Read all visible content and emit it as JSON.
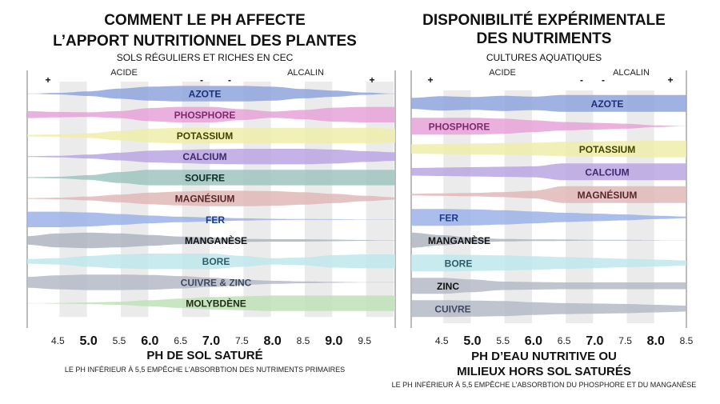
{
  "chart_data": [
    {
      "type": "area",
      "title_lines": [
        "COMMENT LE PH AFFECTE",
        "L’APPORT NUTRITIONNEL DES PLANTES"
      ],
      "subtitle": "SOLS RÉGULIERS ET RICHES EN CEC",
      "regime_left": "ACIDE",
      "regime_right": "ALCALIN",
      "signs": [
        "+",
        "-",
        "-",
        "+"
      ],
      "xlabel": "PH DE SOL SATURÉ",
      "footnote": "LE PH INFÉRIEUR À 5,5 EMPÊCHE L'ABSORBTION DES NUTRIMENTS PRIMAIRES",
      "xlim": [
        4.0,
        10.0
      ],
      "ticks": [
        {
          "value": 4.5,
          "label": "4.5",
          "major": false
        },
        {
          "value": 5.0,
          "label": "5.0",
          "major": true
        },
        {
          "value": 5.5,
          "label": "5.5",
          "major": false
        },
        {
          "value": 6.0,
          "label": "6.0",
          "major": true
        },
        {
          "value": 6.5,
          "label": "6.5",
          "major": false
        },
        {
          "value": 7.0,
          "label": "7.0",
          "major": true
        },
        {
          "value": 7.5,
          "label": "7.5",
          "major": false
        },
        {
          "value": 8.0,
          "label": "8.0",
          "major": true
        },
        {
          "value": 8.5,
          "label": "8.5",
          "major": false
        },
        {
          "value": 9.0,
          "label": "9.0",
          "major": true
        },
        {
          "value": 9.5,
          "label": "9.5",
          "major": false
        }
      ],
      "x": [
        4.0,
        4.5,
        5.0,
        5.5,
        6.0,
        6.5,
        7.0,
        7.5,
        8.0,
        8.5,
        9.0,
        9.5,
        10.0
      ],
      "series": [
        {
          "name": "AZOTE",
          "color": "#8fa4dc",
          "label_color": "#1e2f78",
          "availability": [
            0.0,
            0.1,
            0.3,
            0.65,
            0.9,
            1.0,
            1.0,
            1.0,
            0.9,
            0.6,
            0.4,
            0.15,
            0.0
          ]
        },
        {
          "name": "PHOSPHORE",
          "color": "#e6a3d8",
          "label_color": "#7e2a6e",
          "availability": [
            0.45,
            0.35,
            0.3,
            0.45,
            0.85,
            1.0,
            1.0,
            0.7,
            0.4,
            0.6,
            0.9,
            1.0,
            1.0
          ]
        },
        {
          "name": "POTASSIUM",
          "color": "#eeeeaa",
          "label_color": "#444400",
          "availability": [
            0.1,
            0.15,
            0.3,
            0.6,
            0.9,
            1.0,
            1.0,
            1.0,
            1.0,
            1.0,
            1.0,
            1.0,
            0.9
          ]
        },
        {
          "name": "CALCIUM",
          "color": "#b8a6e3",
          "label_color": "#40286e",
          "availability": [
            0.05,
            0.1,
            0.25,
            0.5,
            0.75,
            0.85,
            0.95,
            1.0,
            1.0,
            1.0,
            0.9,
            0.7,
            0.55
          ]
        },
        {
          "name": "SOUFRE",
          "color": "#9fc4be",
          "label_color": "#0e2e2a",
          "availability": [
            0.05,
            0.1,
            0.3,
            0.7,
            1.0,
            1.0,
            1.0,
            1.0,
            1.0,
            1.0,
            1.0,
            1.0,
            1.0
          ]
        },
        {
          "name": "MAGNÉSIUM",
          "color": "#e0b8b8",
          "label_color": "#5a2626",
          "availability": [
            0.05,
            0.1,
            0.25,
            0.5,
            0.75,
            0.9,
            1.0,
            1.0,
            0.95,
            0.8,
            0.6,
            0.35,
            0.15
          ]
        },
        {
          "name": "FER",
          "color": "#9cb2e8",
          "label_color": "#1e3a8a",
          "availability": [
            1.0,
            1.0,
            0.9,
            0.7,
            0.5,
            0.35,
            0.25,
            0.15,
            0.08,
            0.05,
            0.04,
            0.02,
            0.0
          ]
        },
        {
          "name": "MANGANÈSE",
          "color": "#aeb4c0",
          "label_color": "#111111",
          "availability": [
            0.55,
            0.9,
            1.0,
            0.9,
            0.7,
            0.5,
            0.35,
            0.2,
            0.15,
            0.15,
            0.1,
            0.05,
            0.0
          ]
        },
        {
          "name": "BORE",
          "color": "#bde8ec",
          "label_color": "#2b5d6b",
          "availability": [
            0.3,
            0.4,
            0.7,
            0.9,
            1.0,
            1.0,
            1.0,
            0.7,
            0.4,
            0.5,
            0.8,
            0.9,
            0.9
          ]
        },
        {
          "name": "CUIVRE & ZINC",
          "color": "#b4bac6",
          "label_color": "#3e4a62",
          "availability": [
            0.7,
            0.9,
            1.0,
            1.0,
            0.95,
            0.8,
            0.6,
            0.35,
            0.2,
            0.12,
            0.06,
            0.02,
            0.0
          ]
        },
        {
          "name": "MOLYBDÈNE",
          "color": "#bfe2b8",
          "label_color": "#1e2e12",
          "availability": [
            0.0,
            0.05,
            0.1,
            0.2,
            0.4,
            0.6,
            0.8,
            0.9,
            1.0,
            1.0,
            1.0,
            1.0,
            1.0
          ]
        }
      ]
    },
    {
      "type": "area",
      "title_lines": [
        "DISPONIBILITÉ EXPÉRIMENTALE",
        "DES NUTRIMENTS"
      ],
      "subtitle": "CULTURES AQUATIQUES",
      "regime_left": "ACIDE",
      "regime_right": "ALCALIN",
      "signs": [
        "+",
        "-",
        "-",
        "+"
      ],
      "xlabel_lines": [
        "PH D’EAU NUTRITIVE OU",
        "MILIEUX HORS SOL SATURÉS"
      ],
      "footnote": "LE PH INFÉRIEUR À 5,5 EMPÊCHE L'ABSORBTION DU PHOSPHORE ET DU MANGANÈSE",
      "xlim": [
        4.0,
        8.5
      ],
      "ticks": [
        {
          "value": 4.5,
          "label": "4.5",
          "major": false
        },
        {
          "value": 5.0,
          "label": "5.0",
          "major": true
        },
        {
          "value": 5.5,
          "label": "5.5",
          "major": false
        },
        {
          "value": 6.0,
          "label": "6.0",
          "major": true
        },
        {
          "value": 6.5,
          "label": "6.5",
          "major": false
        },
        {
          "value": 7.0,
          "label": "7.0",
          "major": true
        },
        {
          "value": 7.5,
          "label": "7.5",
          "major": false
        },
        {
          "value": 8.0,
          "label": "8.0",
          "major": true
        },
        {
          "value": 8.5,
          "label": "8.5",
          "major": false
        }
      ],
      "x": [
        4.0,
        4.5,
        5.0,
        5.5,
        6.0,
        6.5,
        7.0,
        7.5,
        8.0,
        8.5
      ],
      "series": [
        {
          "name": "AZOTE",
          "color": "#8fa4dc",
          "label_color": "#1e2f78",
          "availability": [
            0.65,
            0.85,
            0.75,
            0.9,
            0.8,
            1.0,
            1.0,
            1.0,
            1.0,
            1.0
          ]
        },
        {
          "name": "PHOSPHORE",
          "color": "#e6a3d8",
          "label_color": "#7e2a6e",
          "availability": [
            1.0,
            1.0,
            1.0,
            0.9,
            0.7,
            0.5,
            0.4,
            0.3,
            0.1,
            0.0
          ]
        },
        {
          "name": "POTASSIUM",
          "color": "#eeeeaa",
          "label_color": "#444400",
          "availability": [
            0.55,
            0.6,
            0.65,
            0.7,
            0.75,
            0.85,
            0.9,
            0.95,
            1.0,
            1.0
          ]
        },
        {
          "name": "CALCIUM",
          "color": "#b8a6e3",
          "label_color": "#40286e",
          "availability": [
            0.45,
            0.5,
            0.55,
            0.6,
            0.65,
            1.0,
            1.0,
            1.0,
            1.0,
            1.0
          ]
        },
        {
          "name": "MAGNÉSIUM",
          "color": "#e0b8b8",
          "label_color": "#5a2626",
          "availability": [
            0.1,
            0.15,
            0.2,
            0.3,
            0.45,
            1.0,
            1.0,
            1.0,
            1.0,
            1.0
          ]
        },
        {
          "name": "FER",
          "color": "#9cb2e8",
          "label_color": "#1e3a8a",
          "availability": [
            1.0,
            1.0,
            0.95,
            0.85,
            0.7,
            0.55,
            0.45,
            0.35,
            0.2,
            0.1
          ]
        },
        {
          "name": "MANGANÈSE",
          "color": "#aeb4c0",
          "label_color": "#111111",
          "availability": [
            0.9,
            0.6,
            0.3,
            0.15,
            0.1,
            0.08,
            0.05,
            0.04,
            0.02,
            0.0
          ]
        },
        {
          "name": "BORE",
          "color": "#bde8ec",
          "label_color": "#2b5d6b",
          "availability": [
            1.0,
            1.0,
            0.95,
            0.9,
            0.8,
            0.7,
            0.6,
            0.5,
            0.4,
            0.3
          ]
        },
        {
          "name": "ZINC",
          "color": "#b4bac6",
          "label_color": "#111111",
          "availability": [
            0.95,
            0.95,
            0.75,
            0.5,
            0.45,
            0.4,
            0.4,
            0.4,
            0.4,
            0.4
          ]
        },
        {
          "name": "CUIVRE",
          "color": "#b4bac6",
          "label_color": "#3e4a62",
          "availability": [
            1.0,
            1.0,
            0.95,
            0.9,
            0.75,
            0.65,
            0.6,
            0.55,
            0.45,
            0.35
          ]
        }
      ]
    }
  ]
}
